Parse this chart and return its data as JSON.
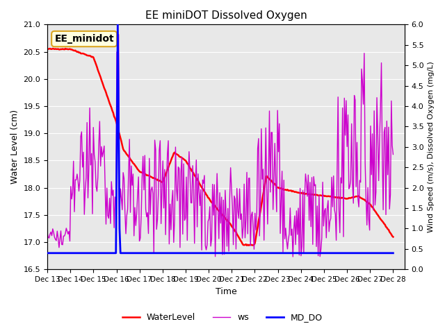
{
  "title": "EE miniDOT Dissolved Oxygen",
  "xlabel": "Time",
  "ylabel_left": "Water Level (cm)",
  "ylabel_right": "Wind Speed (m/s), Dissolved Oxygen (mg/L)",
  "annotation": "EE_minidot",
  "ylim_left": [
    16.5,
    21.0
  ],
  "ylim_right": [
    0.0,
    6.0
  ],
  "yticks_left": [
    16.5,
    17.0,
    17.5,
    18.0,
    18.5,
    19.0,
    19.5,
    20.0,
    20.5,
    21.0
  ],
  "yticks_right": [
    0.0,
    0.5,
    1.0,
    1.5,
    2.0,
    2.5,
    3.0,
    3.5,
    4.0,
    4.5,
    5.0,
    5.5,
    6.0
  ],
  "xtick_labels": [
    "Dec 13",
    "Dec 14",
    "Dec 15",
    "Dec 16",
    "Dec 17",
    "Dec 18",
    "Dec 19",
    "Dec 20",
    "Dec 21",
    "Dec 22",
    "Dec 23",
    "Dec 24",
    "Dec 25",
    "Dec 26",
    "Dec 27",
    "Dec 28"
  ],
  "background_color": "#ffffff",
  "plot_bg_color": "#e8e8e8",
  "grid_color": "#ffffff",
  "colors": {
    "WaterLevel": "#ff0000",
    "ws": "#cc00cc",
    "MD_DO": "#0000ff"
  },
  "linewidths": {
    "WaterLevel": 1.8,
    "ws": 1.0,
    "MD_DO": 2.0
  }
}
